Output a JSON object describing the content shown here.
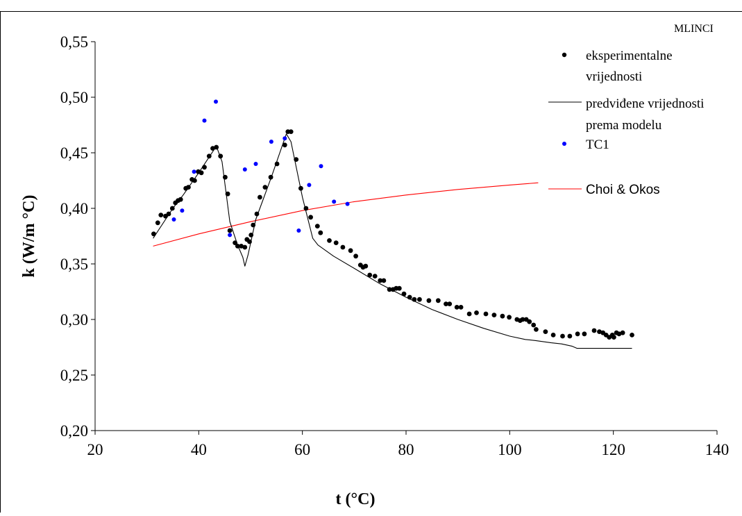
{
  "chart_data": {
    "type": "scatter",
    "corner_label": "MLINCI",
    "xlabel": "t (°C)",
    "ylabel": "k (W/m °C)",
    "xlim": [
      20,
      140
    ],
    "ylim": [
      0.2,
      0.55
    ],
    "x_ticks": [
      20,
      40,
      60,
      80,
      100,
      120,
      140
    ],
    "x_tick_labels": [
      "20",
      "40",
      "60",
      "80",
      "100",
      "120",
      "140"
    ],
    "y_ticks": [
      0.2,
      0.25,
      0.3,
      0.35,
      0.4,
      0.45,
      0.5,
      0.55
    ],
    "y_tick_labels": [
      "0,20",
      "0,25",
      "0,30",
      "0,35",
      "0,40",
      "0,45",
      "0,50",
      "0,55"
    ],
    "grid": false,
    "legend_position": "right",
    "legend": {
      "exp_line1": "eksperimentalne",
      "exp_line2": "vrijednosti",
      "model_line1": "predviđene vrijednosti",
      "model_line2": "prema modelu",
      "tc1": "TC1",
      "choi": "Choi & Okos"
    },
    "series": [
      {
        "name": "eksperimentalne vrijednosti",
        "style": "markers",
        "color": "#000000",
        "points": [
          [
            31.3,
            0.377
          ],
          [
            32.1,
            0.387
          ],
          [
            32.7,
            0.394
          ],
          [
            33.6,
            0.393
          ],
          [
            34.2,
            0.395
          ],
          [
            34.9,
            0.4
          ],
          [
            35.5,
            0.405
          ],
          [
            36.0,
            0.407
          ],
          [
            36.5,
            0.408
          ],
          [
            37.5,
            0.418
          ],
          [
            38.0,
            0.419
          ],
          [
            38.7,
            0.426
          ],
          [
            39.2,
            0.425
          ],
          [
            39.9,
            0.433
          ],
          [
            40.5,
            0.432
          ],
          [
            41.1,
            0.437
          ],
          [
            42.0,
            0.447
          ],
          [
            42.7,
            0.454
          ],
          [
            43.4,
            0.455
          ],
          [
            44.2,
            0.447
          ],
          [
            45.1,
            0.428
          ],
          [
            45.6,
            0.413
          ],
          [
            46.0,
            0.38
          ],
          [
            47.0,
            0.369
          ],
          [
            47.5,
            0.366
          ],
          [
            48.2,
            0.366
          ],
          [
            48.9,
            0.365
          ],
          [
            49.3,
            0.372
          ],
          [
            49.8,
            0.37
          ],
          [
            50.1,
            0.376
          ],
          [
            50.5,
            0.385
          ],
          [
            51.2,
            0.395
          ],
          [
            51.8,
            0.41
          ],
          [
            52.8,
            0.419
          ],
          [
            53.9,
            0.428
          ],
          [
            55.1,
            0.44
          ],
          [
            56.6,
            0.457
          ],
          [
            57.2,
            0.469
          ],
          [
            57.8,
            0.469
          ],
          [
            58.8,
            0.444
          ],
          [
            59.7,
            0.418
          ],
          [
            60.7,
            0.4
          ],
          [
            61.6,
            0.392
          ],
          [
            62.9,
            0.384
          ],
          [
            63.5,
            0.378
          ],
          [
            65.2,
            0.371
          ],
          [
            66.5,
            0.369
          ],
          [
            67.8,
            0.365
          ],
          [
            69.3,
            0.362
          ],
          [
            70.3,
            0.357
          ],
          [
            71.2,
            0.349
          ],
          [
            71.7,
            0.347
          ],
          [
            72.2,
            0.348
          ],
          [
            73.0,
            0.34
          ],
          [
            74.0,
            0.339
          ],
          [
            75.0,
            0.335
          ],
          [
            75.7,
            0.335
          ],
          [
            76.8,
            0.327
          ],
          [
            77.5,
            0.327
          ],
          [
            78.1,
            0.328
          ],
          [
            78.7,
            0.328
          ],
          [
            79.6,
            0.323
          ],
          [
            80.7,
            0.32
          ],
          [
            81.6,
            0.318
          ],
          [
            82.6,
            0.318
          ],
          [
            84.4,
            0.317
          ],
          [
            86.2,
            0.317
          ],
          [
            87.7,
            0.314
          ],
          [
            88.4,
            0.314
          ],
          [
            89.8,
            0.311
          ],
          [
            90.6,
            0.311
          ],
          [
            92.2,
            0.305
          ],
          [
            93.6,
            0.306
          ],
          [
            95.4,
            0.305
          ],
          [
            97.0,
            0.304
          ],
          [
            98.6,
            0.303
          ],
          [
            99.9,
            0.302
          ],
          [
            101.4,
            0.3
          ],
          [
            102.0,
            0.299
          ],
          [
            102.5,
            0.3
          ],
          [
            103.2,
            0.3
          ],
          [
            103.8,
            0.298
          ],
          [
            104.6,
            0.295
          ],
          [
            105.1,
            0.291
          ],
          [
            106.9,
            0.289
          ],
          [
            108.4,
            0.286
          ],
          [
            110.2,
            0.285
          ],
          [
            111.6,
            0.285
          ],
          [
            113.1,
            0.287
          ],
          [
            114.4,
            0.287
          ],
          [
            116.3,
            0.29
          ],
          [
            117.3,
            0.289
          ],
          [
            118.0,
            0.288
          ],
          [
            118.6,
            0.286
          ],
          [
            119.2,
            0.284
          ],
          [
            119.8,
            0.286
          ],
          [
            120.1,
            0.284
          ],
          [
            120.6,
            0.288
          ],
          [
            121.1,
            0.287
          ],
          [
            121.8,
            0.288
          ],
          [
            123.6,
            0.286
          ]
        ]
      },
      {
        "name": "predviđene vrijednosti prema modelu",
        "style": "line",
        "color": "#000000",
        "points": [
          [
            31.2,
            0.373
          ],
          [
            35.0,
            0.4
          ],
          [
            37.0,
            0.412
          ],
          [
            40.0,
            0.432
          ],
          [
            43.4,
            0.456
          ],
          [
            44.5,
            0.442
          ],
          [
            46.0,
            0.388
          ],
          [
            47.5,
            0.367
          ],
          [
            48.5,
            0.356
          ],
          [
            48.9,
            0.348
          ],
          [
            49.5,
            0.358
          ],
          [
            51.0,
            0.39
          ],
          [
            54.0,
            0.428
          ],
          [
            56.9,
            0.467
          ],
          [
            57.8,
            0.46
          ],
          [
            60.0,
            0.41
          ],
          [
            62.0,
            0.373
          ],
          [
            63.0,
            0.367
          ],
          [
            66.0,
            0.357
          ],
          [
            70.0,
            0.346
          ],
          [
            75.0,
            0.332
          ],
          [
            80.0,
            0.32
          ],
          [
            85.0,
            0.309
          ],
          [
            90.0,
            0.3
          ],
          [
            95.0,
            0.292
          ],
          [
            100.0,
            0.285
          ],
          [
            103.0,
            0.282
          ],
          [
            105.0,
            0.281
          ],
          [
            108.0,
            0.279
          ],
          [
            110.0,
            0.278
          ],
          [
            112.0,
            0.276
          ],
          [
            113.0,
            0.274
          ],
          [
            118.0,
            0.274
          ],
          [
            123.6,
            0.274
          ]
        ]
      },
      {
        "name": "TC1",
        "style": "markers",
        "color": "#0000ff",
        "points": [
          [
            35.2,
            0.39
          ],
          [
            36.8,
            0.398
          ],
          [
            39.1,
            0.433
          ],
          [
            41.1,
            0.479
          ],
          [
            43.3,
            0.496
          ],
          [
            46.0,
            0.376
          ],
          [
            48.9,
            0.435
          ],
          [
            51.0,
            0.44
          ],
          [
            54.0,
            0.46
          ],
          [
            56.6,
            0.463
          ],
          [
            59.3,
            0.38
          ],
          [
            61.3,
            0.421
          ],
          [
            63.6,
            0.438
          ],
          [
            66.1,
            0.406
          ],
          [
            68.7,
            0.404
          ]
        ]
      },
      {
        "name": "Choi & Okos",
        "style": "line",
        "color": "#ff0000",
        "points": [
          [
            31.2,
            0.366
          ],
          [
            40.0,
            0.377
          ],
          [
            50.0,
            0.388
          ],
          [
            60.0,
            0.398
          ],
          [
            70.0,
            0.406
          ],
          [
            80.0,
            0.412
          ],
          [
            90.0,
            0.417
          ],
          [
            100.0,
            0.421
          ],
          [
            105.5,
            0.423
          ]
        ]
      }
    ]
  }
}
